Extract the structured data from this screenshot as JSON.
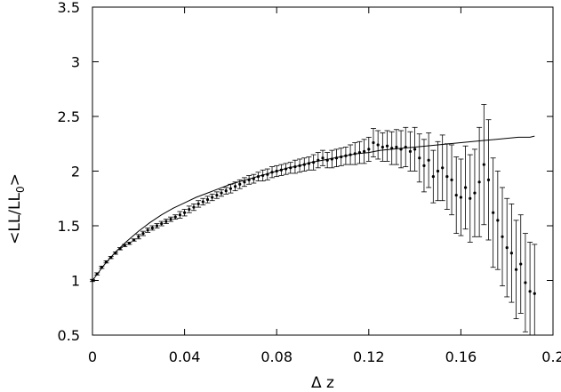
{
  "chart_data": {
    "type": "scatter",
    "title": "",
    "xlabel": "Δ z",
    "ylabel": "<LL/LL0>",
    "ylabel_main": "<LL/LL",
    "ylabel_sub": "0",
    "ylabel_end": ">",
    "xlim": [
      0,
      0.2
    ],
    "ylim": [
      0.5,
      3.5
    ],
    "x_ticks": [
      0,
      0.04,
      0.08,
      0.12,
      0.16,
      0.2
    ],
    "x_tick_labels": [
      "0",
      "0.04",
      "0.08",
      "0.12",
      "0.16",
      "0.2"
    ],
    "y_ticks": [
      0.5,
      1,
      1.5,
      2,
      2.5,
      3,
      3.5
    ],
    "y_tick_labels": [
      "0.5",
      "1",
      "1.5",
      "2",
      "2.5",
      "3",
      "3.5"
    ],
    "grid": false,
    "legend": "none",
    "series": [
      {
        "kind": "points_with_error_bars",
        "x": [
          0.0,
          0.002,
          0.004,
          0.006,
          0.008,
          0.01,
          0.012,
          0.014,
          0.016,
          0.018,
          0.02,
          0.022,
          0.024,
          0.026,
          0.028,
          0.03,
          0.032,
          0.034,
          0.036,
          0.038,
          0.04,
          0.042,
          0.044,
          0.046,
          0.048,
          0.05,
          0.052,
          0.054,
          0.056,
          0.058,
          0.06,
          0.062,
          0.064,
          0.066,
          0.068,
          0.07,
          0.072,
          0.074,
          0.076,
          0.078,
          0.08,
          0.082,
          0.084,
          0.086,
          0.088,
          0.09,
          0.092,
          0.094,
          0.096,
          0.098,
          0.1,
          0.102,
          0.104,
          0.106,
          0.108,
          0.11,
          0.112,
          0.114,
          0.116,
          0.118,
          0.12,
          0.122,
          0.124,
          0.126,
          0.128,
          0.13,
          0.132,
          0.134,
          0.136,
          0.138,
          0.14,
          0.142,
          0.144,
          0.146,
          0.148,
          0.15,
          0.152,
          0.154,
          0.156,
          0.158,
          0.16,
          0.162,
          0.164,
          0.166,
          0.168,
          0.17,
          0.172,
          0.174,
          0.176,
          0.178,
          0.18,
          0.182,
          0.184,
          0.186,
          0.188,
          0.19,
          0.192
        ],
        "y": [
          1.0,
          1.06,
          1.12,
          1.17,
          1.21,
          1.25,
          1.29,
          1.32,
          1.34,
          1.37,
          1.4,
          1.43,
          1.46,
          1.48,
          1.5,
          1.52,
          1.54,
          1.56,
          1.58,
          1.6,
          1.62,
          1.65,
          1.67,
          1.7,
          1.72,
          1.74,
          1.76,
          1.78,
          1.8,
          1.82,
          1.84,
          1.86,
          1.88,
          1.9,
          1.92,
          1.93,
          1.95,
          1.96,
          1.97,
          1.99,
          2.0,
          2.01,
          2.02,
          2.03,
          2.04,
          2.05,
          2.06,
          2.07,
          2.08,
          2.1,
          2.12,
          2.1,
          2.11,
          2.12,
          2.13,
          2.14,
          2.15,
          2.16,
          2.17,
          2.18,
          2.2,
          2.26,
          2.24,
          2.22,
          2.23,
          2.21,
          2.22,
          2.2,
          2.22,
          2.18,
          2.2,
          2.12,
          2.05,
          2.1,
          1.95,
          2.0,
          2.03,
          1.95,
          1.92,
          1.78,
          1.76,
          1.85,
          1.75,
          1.8,
          1.9,
          2.06,
          1.92,
          1.62,
          1.55,
          1.4,
          1.3,
          1.25,
          1.1,
          1.15,
          0.98,
          0.9,
          0.88
        ],
        "err": [
          0.01,
          0.01,
          0.01,
          0.01,
          0.01,
          0.01,
          0.01,
          0.01,
          0.01,
          0.01,
          0.02,
          0.02,
          0.02,
          0.02,
          0.02,
          0.02,
          0.02,
          0.02,
          0.02,
          0.03,
          0.03,
          0.03,
          0.03,
          0.03,
          0.03,
          0.03,
          0.03,
          0.03,
          0.03,
          0.03,
          0.04,
          0.04,
          0.04,
          0.04,
          0.04,
          0.04,
          0.04,
          0.05,
          0.05,
          0.05,
          0.05,
          0.05,
          0.05,
          0.05,
          0.06,
          0.06,
          0.06,
          0.06,
          0.07,
          0.07,
          0.07,
          0.07,
          0.08,
          0.08,
          0.08,
          0.08,
          0.09,
          0.1,
          0.1,
          0.11,
          0.11,
          0.13,
          0.13,
          0.13,
          0.14,
          0.15,
          0.16,
          0.17,
          0.18,
          0.18,
          0.2,
          0.22,
          0.24,
          0.25,
          0.24,
          0.27,
          0.3,
          0.3,
          0.32,
          0.35,
          0.35,
          0.38,
          0.4,
          0.4,
          0.5,
          0.55,
          0.55,
          0.5,
          0.45,
          0.45,
          0.45,
          0.45,
          0.45,
          0.45,
          0.45,
          0.45,
          0.45
        ]
      },
      {
        "kind": "fit_curve",
        "x": [
          0.0,
          0.005,
          0.01,
          0.015,
          0.02,
          0.025,
          0.03,
          0.035,
          0.04,
          0.045,
          0.05,
          0.055,
          0.06,
          0.065,
          0.07,
          0.075,
          0.08,
          0.085,
          0.09,
          0.095,
          0.1,
          0.105,
          0.11,
          0.115,
          0.12,
          0.125,
          0.13,
          0.135,
          0.14,
          0.145,
          0.15,
          0.155,
          0.16,
          0.165,
          0.17,
          0.175,
          0.18,
          0.185,
          0.19,
          0.192
        ],
        "y": [
          1.0,
          1.14,
          1.26,
          1.36,
          1.45,
          1.53,
          1.6,
          1.66,
          1.71,
          1.76,
          1.8,
          1.84,
          1.88,
          1.91,
          1.94,
          1.97,
          2.0,
          2.03,
          2.05,
          2.08,
          2.1,
          2.12,
          2.14,
          2.16,
          2.17,
          2.19,
          2.2,
          2.21,
          2.22,
          2.23,
          2.24,
          2.25,
          2.26,
          2.27,
          2.28,
          2.29,
          2.3,
          2.31,
          2.31,
          2.32
        ]
      }
    ]
  }
}
